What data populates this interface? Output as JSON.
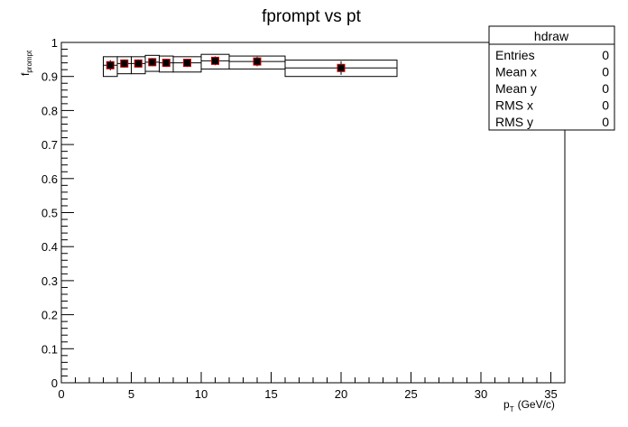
{
  "chart_data": {
    "type": "scatter",
    "title": "fprompt vs pt",
    "xlabel": "p_T (GeV/c)",
    "xlabel_main": "p",
    "xlabel_sub": "T",
    "xlabel_unit": "(GeV/c)",
    "ylabel": "f_prompt",
    "ylabel_main": "f",
    "ylabel_sub": "prompt",
    "xlim": [
      0,
      36
    ],
    "ylim": [
      0,
      1
    ],
    "x_ticks": [
      0,
      5,
      10,
      15,
      20,
      25,
      30,
      35
    ],
    "y_ticks": [
      0,
      0.1,
      0.2,
      0.3,
      0.4,
      0.5,
      0.6,
      0.7,
      0.8,
      0.9,
      1
    ],
    "grid": false,
    "marker_color": "#000000",
    "marker_edge_color": "#cc0000",
    "points": [
      {
        "x": 3.5,
        "y": 0.933,
        "xlow": 3,
        "xhigh": 4,
        "stat_err": 0.015,
        "sys_low": 0.9,
        "sys_high": 0.958
      },
      {
        "x": 4.5,
        "y": 0.938,
        "xlow": 4,
        "xhigh": 5,
        "stat_err": 0.012,
        "sys_low": 0.908,
        "sys_high": 0.958
      },
      {
        "x": 5.5,
        "y": 0.938,
        "xlow": 5,
        "xhigh": 6,
        "stat_err": 0.012,
        "sys_low": 0.908,
        "sys_high": 0.958
      },
      {
        "x": 6.5,
        "y": 0.942,
        "xlow": 6,
        "xhigh": 7,
        "stat_err": 0.012,
        "sys_low": 0.915,
        "sys_high": 0.962
      },
      {
        "x": 7.5,
        "y": 0.94,
        "xlow": 7,
        "xhigh": 8,
        "stat_err": 0.012,
        "sys_low": 0.913,
        "sys_high": 0.96
      },
      {
        "x": 9,
        "y": 0.94,
        "xlow": 8,
        "xhigh": 10,
        "stat_err": 0.012,
        "sys_low": 0.913,
        "sys_high": 0.958
      },
      {
        "x": 11,
        "y": 0.946,
        "xlow": 10,
        "xhigh": 12,
        "stat_err": 0.013,
        "sys_low": 0.922,
        "sys_high": 0.965
      },
      {
        "x": 14,
        "y": 0.944,
        "xlow": 12,
        "xhigh": 16,
        "stat_err": 0.014,
        "sys_low": 0.922,
        "sys_high": 0.96
      },
      {
        "x": 20,
        "y": 0.925,
        "xlow": 16,
        "xhigh": 24,
        "stat_err": 0.02,
        "sys_low": 0.9,
        "sys_high": 0.948
      }
    ]
  },
  "stats_box": {
    "title": "hdraw",
    "rows": [
      {
        "label": "Entries",
        "value": "0"
      },
      {
        "label": "Mean x",
        "value": "0"
      },
      {
        "label": "Mean y",
        "value": "0"
      },
      {
        "label": "RMS x",
        "value": "0"
      },
      {
        "label": "RMS y",
        "value": "0"
      }
    ]
  }
}
